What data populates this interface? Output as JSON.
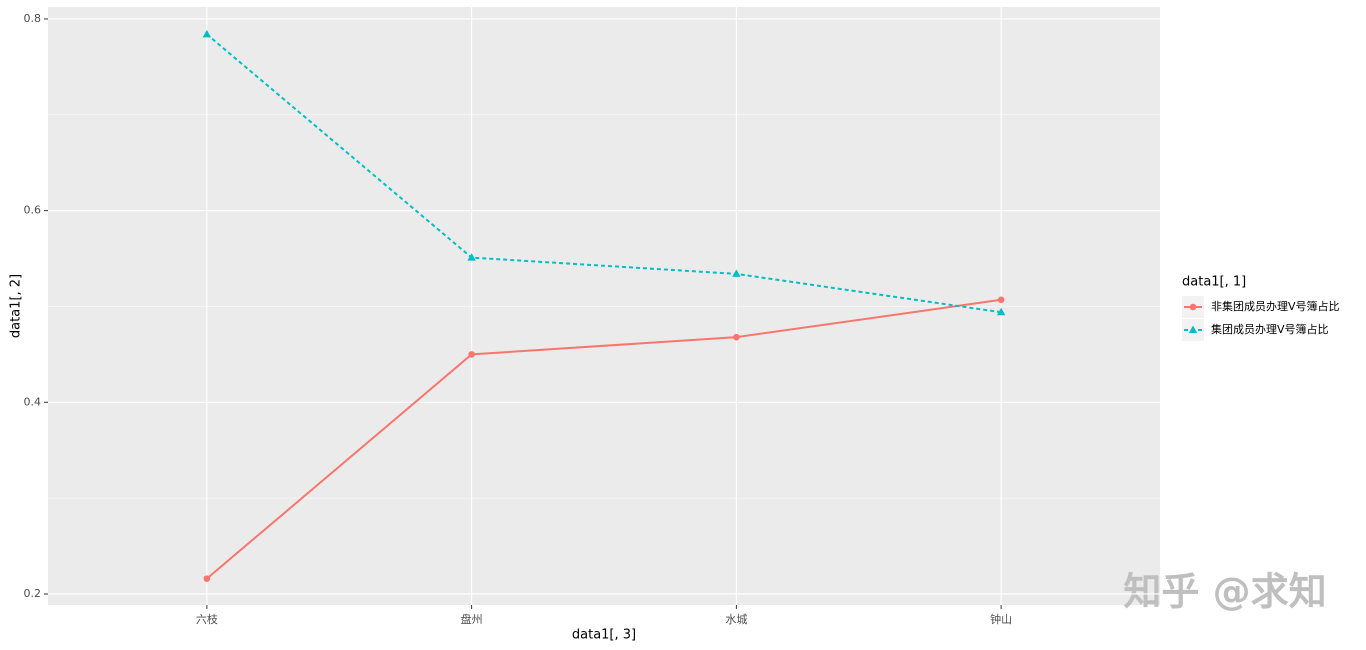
{
  "chart_data": {
    "type": "line",
    "x_label": "data1[, 3]",
    "y_label": "data1[, 2]",
    "legend_title": "data1[, 1]",
    "categories": [
      "六枝",
      "盘州",
      "水城",
      "钟山"
    ],
    "series": [
      {
        "name": "非集团成员办理V号簿占比",
        "color": "#F8766D",
        "dash": "solid",
        "marker": "circle",
        "values": [
          0.216,
          0.45,
          0.468,
          0.507
        ]
      },
      {
        "name": "集团成员办理V号簿占比",
        "color": "#00BFC4",
        "dash": "dashed",
        "marker": "triangle",
        "values": [
          0.784,
          0.551,
          0.534,
          0.494
        ]
      }
    ],
    "ylim": [
      0.1885,
      0.8125
    ],
    "yticks": [
      0.2,
      0.4,
      0.6,
      0.8
    ],
    "grid": true,
    "legend": "right",
    "watermark": "知乎 @求知"
  }
}
